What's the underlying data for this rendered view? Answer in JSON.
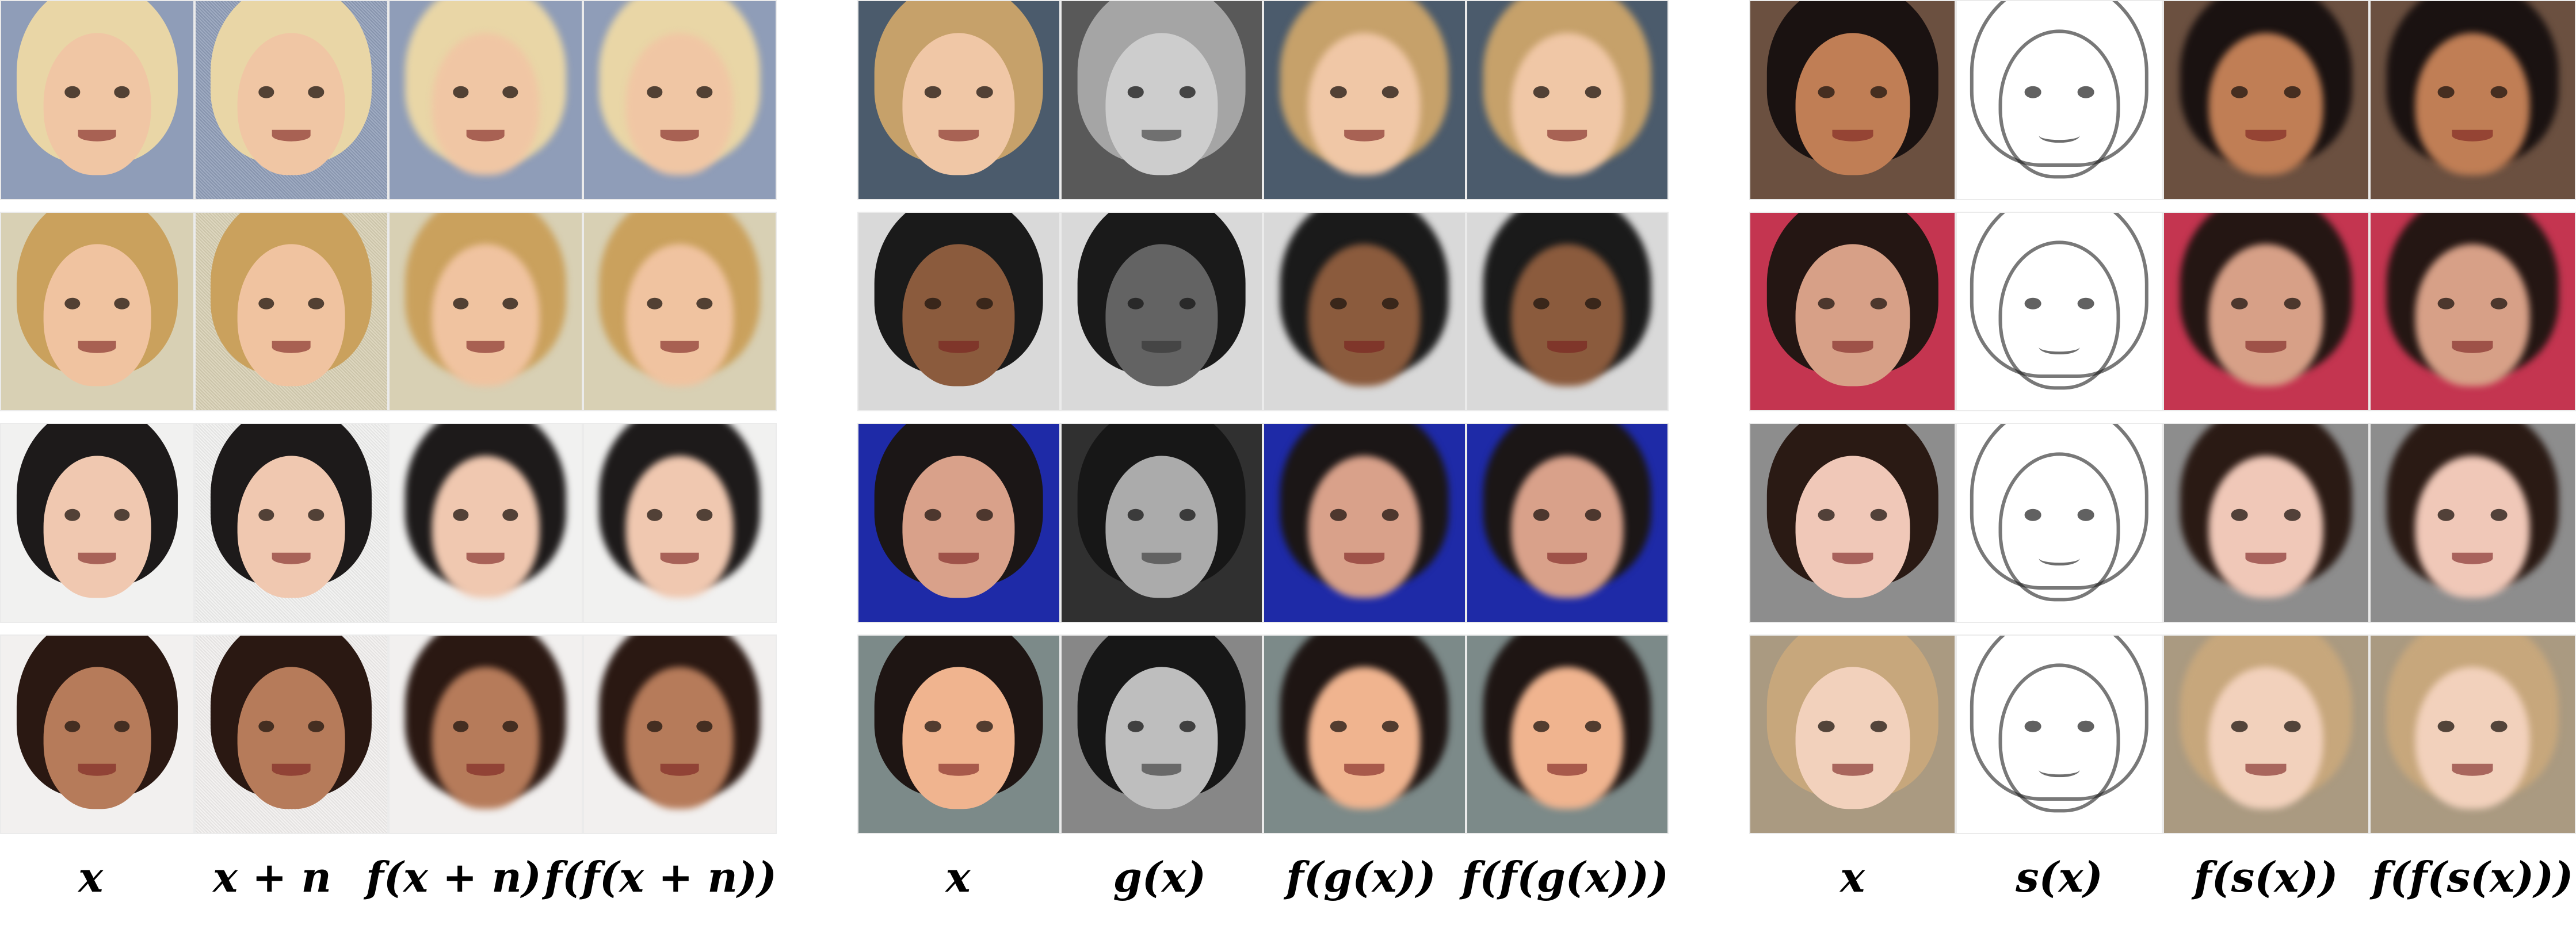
{
  "panels": [
    {
      "labels": [
        "x",
        "x + n",
        "f(x + n)",
        "f(f(x + n))"
      ],
      "rows": [
        {
          "bg": "#8f9db8",
          "hair": "#e9d6a6",
          "skin": "#f0c6a4"
        },
        {
          "bg": "#d8d0b4",
          "hair": "#caa15d",
          "skin": "#f0c3a0"
        },
        {
          "bg": "#f1f1f0",
          "hair": "#1d1a1a",
          "skin": "#f0c8b0"
        },
        {
          "bg": "#f2f0ef",
          "hair": "#2a1812",
          "skin": "#b67b5a"
        }
      ]
    },
    {
      "labels": [
        "x",
        "g(x)",
        "f(g(x))",
        "f(f(g(x)))"
      ],
      "rows": [
        {
          "bg": "#4b5b6c",
          "hair": "#c6a16a",
          "skin": "#f0c7a6"
        },
        {
          "bg": "#d9d9d9",
          "hair": "#1a1a1a",
          "skin": "#8b5b3d"
        },
        {
          "bg": "#1e2aa7",
          "hair": "#1b1616",
          "skin": "#d9a18a"
        },
        {
          "bg": "#7c8a89",
          "hair": "#1e1513",
          "skin": "#f0b48f"
        }
      ]
    },
    {
      "labels": [
        "x",
        "s(x)",
        "f(s(x))",
        "f(f(s(x)))"
      ],
      "rows": [
        {
          "bg": "#6b5040",
          "hair": "#1a1211",
          "skin": "#c07e55"
        },
        {
          "bg": "#c43550",
          "hair": "#241613",
          "skin": "#d7a087"
        },
        {
          "bg": "#8d8d8d",
          "hair": "#2a1a14",
          "skin": "#f0c8b8"
        },
        {
          "bg": "#aa9a81",
          "hair": "#c7a77c",
          "skin": "#f2d1bc"
        }
      ]
    }
  ]
}
